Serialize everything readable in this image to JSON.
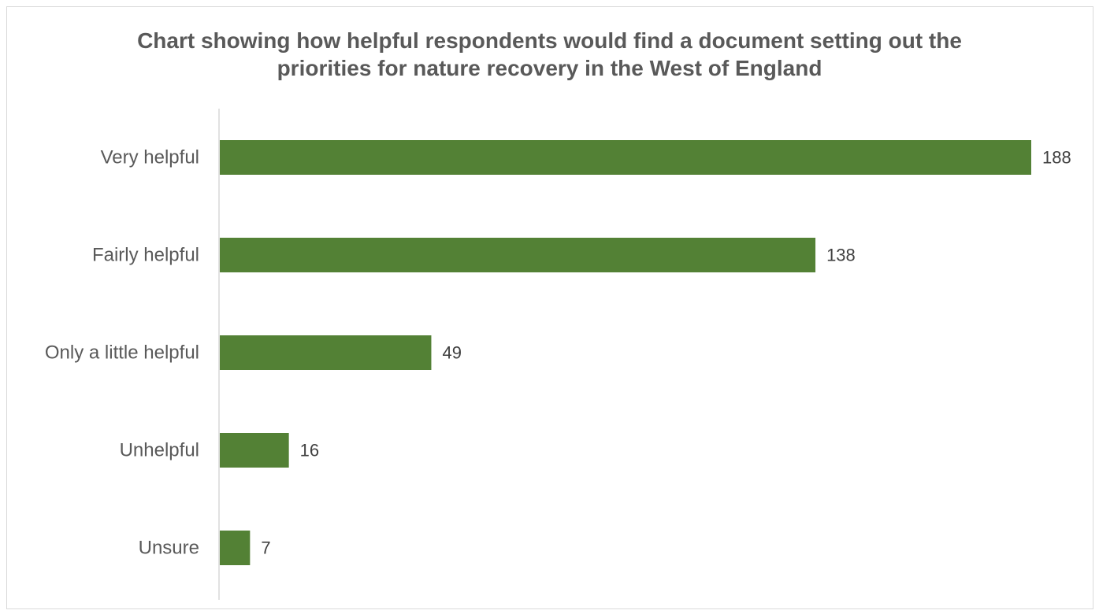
{
  "chart_data": {
    "type": "bar",
    "orientation": "horizontal",
    "title": "Chart showing how helpful respondents would find a document setting out the priorities for nature recovery in the West of England",
    "title_lines": [
      "Chart showing how helpful respondents would find a document setting out the",
      "priorities for nature recovery in the West of England"
    ],
    "categories": [
      "Very helpful",
      "Fairly helpful",
      "Only a little helpful",
      "Unhelpful",
      "Unsure"
    ],
    "values": [
      188,
      138,
      49,
      16,
      7
    ],
    "data_labels": [
      "188",
      "138",
      "49",
      "16",
      "7"
    ],
    "xlim": [
      0,
      188
    ],
    "xlabel": "",
    "ylabel": "",
    "grid": false,
    "legend": "none",
    "bar_color": "#538135"
  }
}
